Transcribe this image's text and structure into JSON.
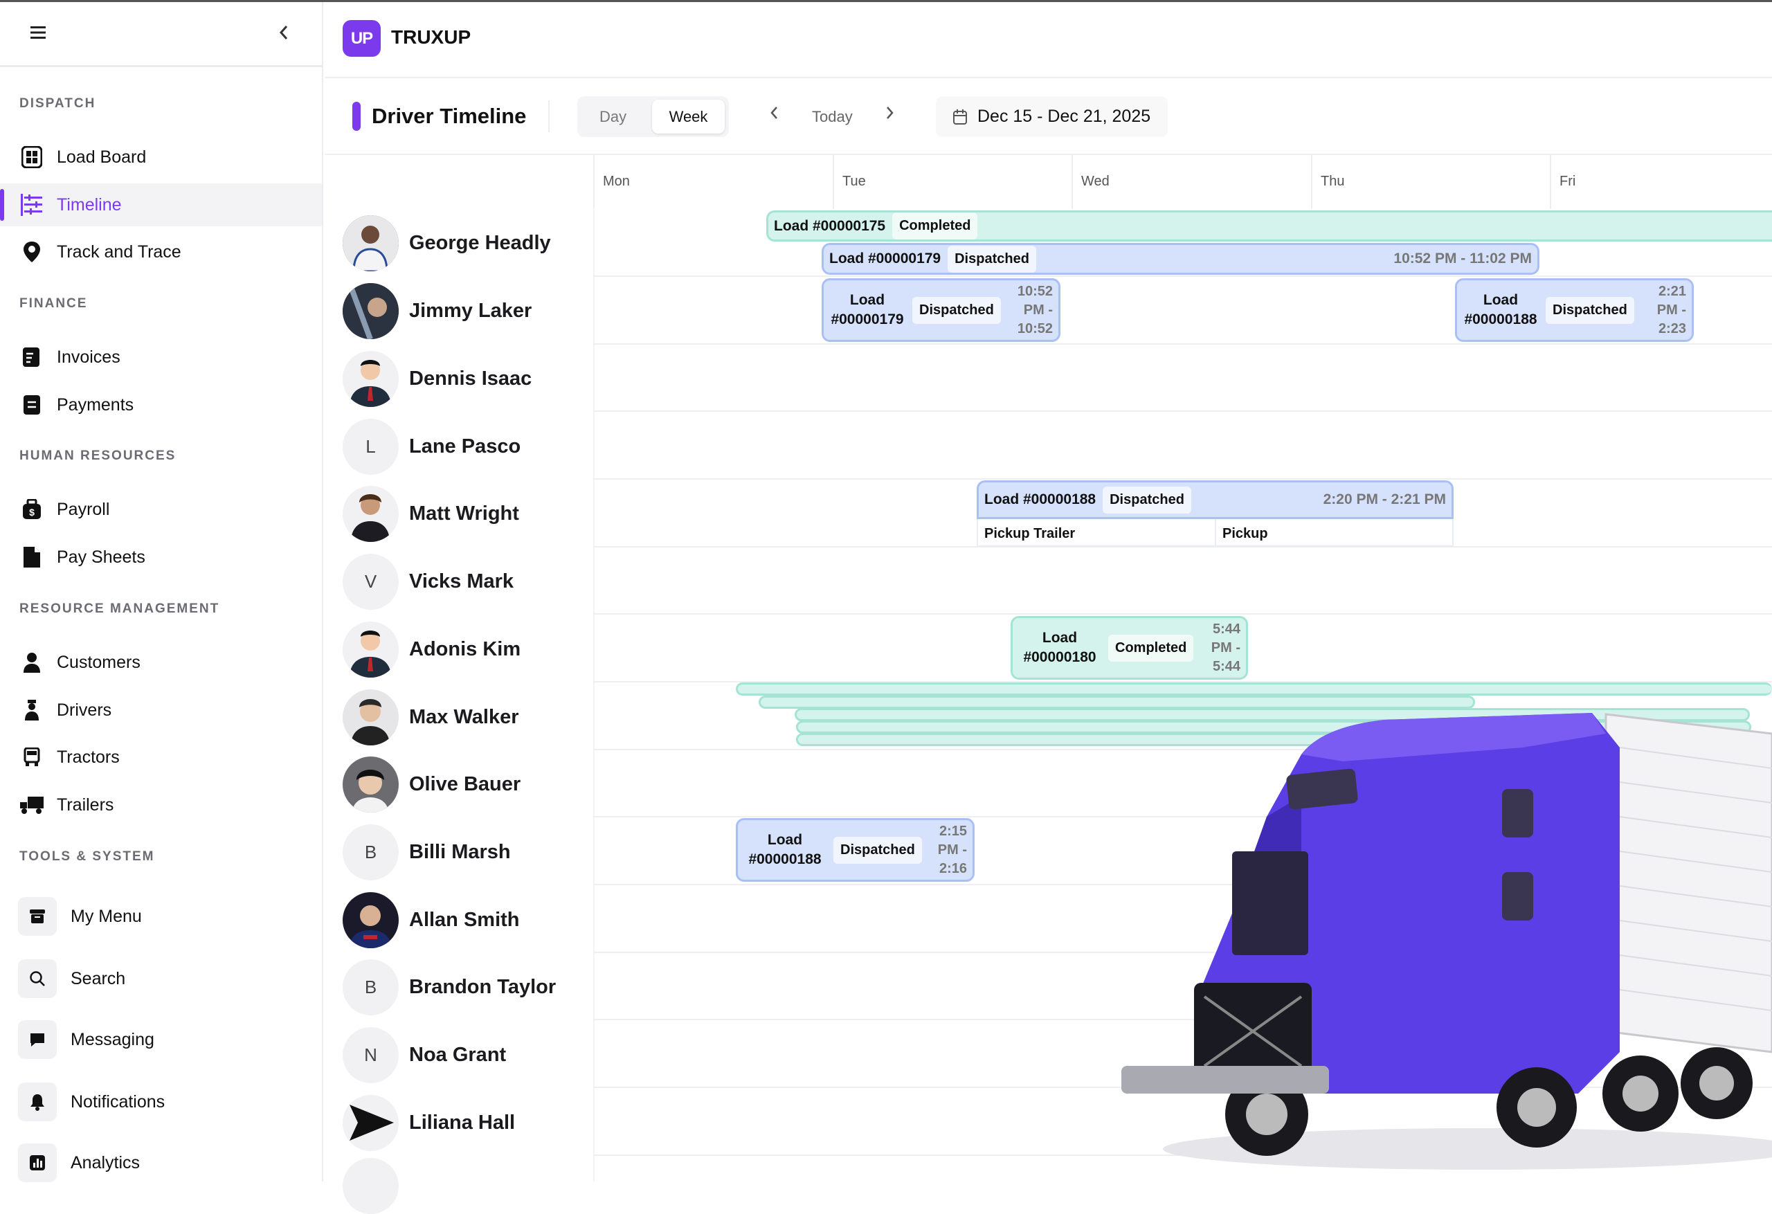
{
  "sidebar": {
    "sections": [
      "DISPATCH",
      "FINANCE",
      "HUMAN RESOURCES",
      "RESOURCE MANAGEMENT",
      "TOOLS & SYSTEM"
    ],
    "items": [
      {
        "label": "Load Board",
        "icon": "grid-icon"
      },
      {
        "label": "Timeline",
        "icon": "timeline-icon",
        "active": true
      },
      {
        "label": "Track and Trace",
        "icon": "map-pin-icon"
      },
      {
        "label": "Invoices",
        "icon": "invoice-icon"
      },
      {
        "label": "Payments",
        "icon": "payment-icon"
      },
      {
        "label": "Payroll",
        "icon": "money-bag-icon"
      },
      {
        "label": "Pay Sheets",
        "icon": "file-icon"
      },
      {
        "label": "Customers",
        "icon": "customer-icon"
      },
      {
        "label": "Drivers",
        "icon": "driver-icon"
      },
      {
        "label": "Tractors",
        "icon": "tractor-icon"
      },
      {
        "label": "Trailers",
        "icon": "trailer-icon"
      }
    ],
    "tools": [
      {
        "label": "My Menu",
        "icon": "menu-box-icon"
      },
      {
        "label": "Search",
        "icon": "search-icon"
      },
      {
        "label": "Messaging",
        "icon": "chat-icon"
      },
      {
        "label": "Notifications",
        "icon": "bell-icon"
      },
      {
        "label": "Analytics",
        "icon": "chart-icon"
      }
    ]
  },
  "header": {
    "logo_text": "UP",
    "brand": "TRUXUP",
    "accent": "#7c3aed"
  },
  "toolbar": {
    "title": "Driver Timeline",
    "view_day": "Day",
    "view_week": "Week",
    "selected_view": "Week",
    "today": "Today",
    "date_range": "Dec 15 - Dec 21, 2025"
  },
  "timeline": {
    "days": [
      "Mon",
      "Tue",
      "Wed",
      "Thu",
      "Fri"
    ],
    "drivers": [
      {
        "name": "George Headly",
        "avatar": "photo"
      },
      {
        "name": "Jimmy Laker",
        "avatar": "photo"
      },
      {
        "name": "Dennis Isaac",
        "avatar": "photo"
      },
      {
        "name": "Lane Pasco",
        "avatar": "L"
      },
      {
        "name": "Matt Wright",
        "avatar": "photo"
      },
      {
        "name": "Vicks Mark",
        "avatar": "V"
      },
      {
        "name": "Adonis Kim",
        "avatar": "photo"
      },
      {
        "name": "Max Walker",
        "avatar": "photo"
      },
      {
        "name": "Olive Bauer",
        "avatar": "photo"
      },
      {
        "name": "Billi Marsh",
        "avatar": "B"
      },
      {
        "name": "Allan Smith",
        "avatar": "photo"
      },
      {
        "name": "Brandon Taylor",
        "avatar": "B"
      },
      {
        "name": "Noa Grant",
        "avatar": "N"
      },
      {
        "name": "Liliana Hall",
        "avatar": "send-icon"
      }
    ],
    "loads": [
      {
        "load": "Load #00000175",
        "status": "Completed",
        "time": ""
      },
      {
        "load": "Load #00000179",
        "status": "Dispatched",
        "time": "10:52 PM - 11:02 PM"
      },
      {
        "load": "Load #00000179",
        "status": "Dispatched",
        "time": "10:52 PM - 10:52"
      },
      {
        "load": "Load #00000188",
        "status": "Dispatched",
        "time": "2:21 PM - 2:23"
      },
      {
        "load": "Load #00000188",
        "status": "Dispatched",
        "time": "2:20 PM - 2:21 PM",
        "stops": [
          "Pickup Trailer",
          "Pickup"
        ]
      },
      {
        "load": "Load #00000180",
        "status": "Completed",
        "time": "5:44 PM - 5:44"
      },
      {
        "load": "Load #00000188",
        "status": "Dispatched",
        "time": "2:15 PM - 2:16"
      }
    ],
    "status_colors": {
      "Completed": "#d3f3ec",
      "Dispatched": "#d6e2fb"
    }
  }
}
